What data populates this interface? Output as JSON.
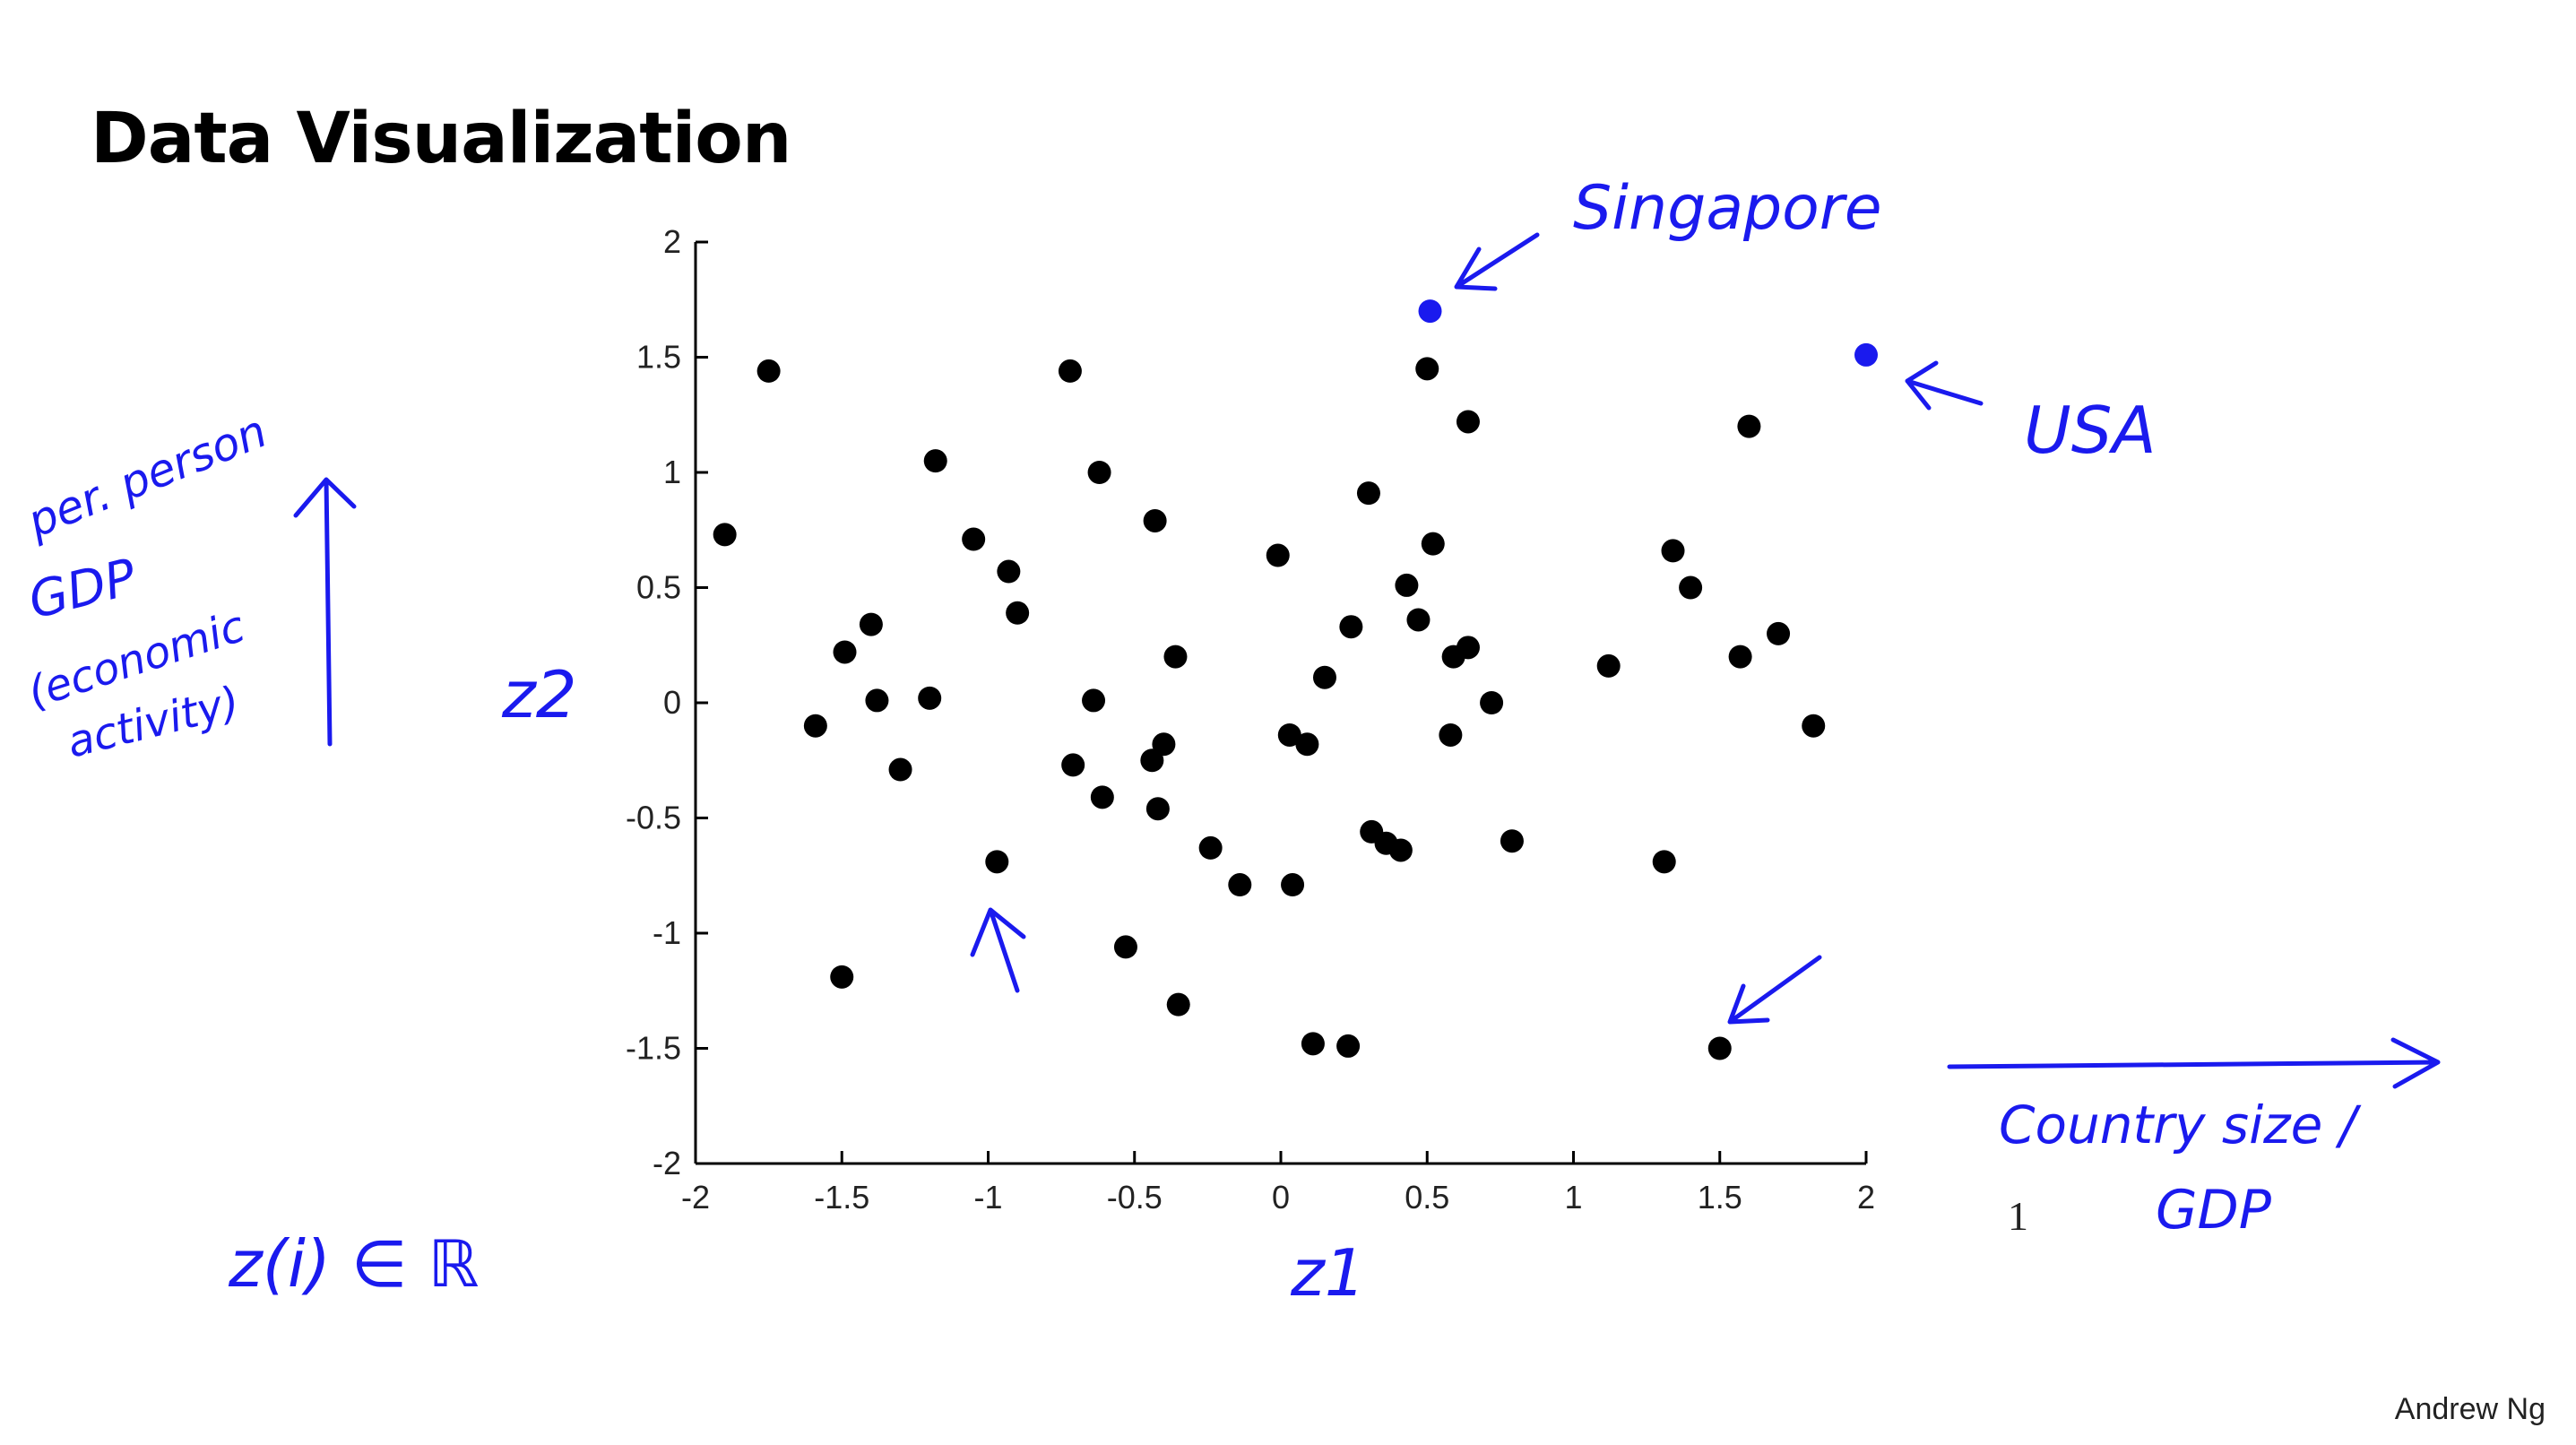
{
  "title": "Data Visualization",
  "credit": "Andrew Ng",
  "stray_mark": "1",
  "colors": {
    "points": "#000000",
    "highlight": "#1a1aee",
    "annotation": "#1a1aee",
    "axis": "#000000"
  },
  "chart_data": {
    "type": "scatter",
    "xlim": [
      -2,
      2
    ],
    "ylim": [
      -2,
      2
    ],
    "xticks": [
      -2,
      -1.5,
      -1,
      -0.5,
      0,
      0.5,
      1,
      1.5,
      2
    ],
    "yticks": [
      -2,
      -1.5,
      -1,
      -0.5,
      0,
      0.5,
      1,
      1.5,
      2
    ],
    "xtick_labels": [
      "-2",
      "-1.5",
      "-1",
      "-0.5",
      "0",
      "0.5",
      "1",
      "1.5",
      "2"
    ],
    "ytick_labels": [
      "-2",
      "-1.5",
      "-1",
      "-0.5",
      "0",
      "0.5",
      "1",
      "1.5",
      "2"
    ],
    "grid": false,
    "points": [
      [
        -1.9,
        0.73
      ],
      [
        -1.75,
        1.44
      ],
      [
        -1.18,
        1.05
      ],
      [
        -1.05,
        0.71
      ],
      [
        -0.93,
        0.57
      ],
      [
        -0.9,
        0.39
      ],
      [
        -1.4,
        0.34
      ],
      [
        -1.49,
        0.22
      ],
      [
        -1.38,
        0.01
      ],
      [
        -1.2,
        0.02
      ],
      [
        -1.59,
        -0.1
      ],
      [
        -1.3,
        -0.29
      ],
      [
        -0.62,
        1.0
      ],
      [
        -0.43,
        0.79
      ],
      [
        -0.36,
        0.2
      ],
      [
        -0.64,
        0.01
      ],
      [
        -0.71,
        -0.27
      ],
      [
        -0.61,
        -0.41
      ],
      [
        -0.44,
        -0.25
      ],
      [
        -0.4,
        -0.18
      ],
      [
        -0.42,
        -0.46
      ],
      [
        -0.24,
        -0.63
      ],
      [
        -0.14,
        -0.79
      ],
      [
        -0.97,
        -0.69
      ],
      [
        -0.53,
        -1.06
      ],
      [
        -0.35,
        -1.31
      ],
      [
        -1.5,
        -1.19
      ],
      [
        -0.72,
        1.44
      ],
      [
        -0.01,
        0.64
      ],
      [
        0.03,
        -0.14
      ],
      [
        0.09,
        -0.18
      ],
      [
        0.15,
        0.11
      ],
      [
        0.24,
        0.33
      ],
      [
        0.3,
        0.91
      ],
      [
        0.31,
        -0.56
      ],
      [
        0.36,
        -0.61
      ],
      [
        0.41,
        -0.64
      ],
      [
        0.04,
        -0.79
      ],
      [
        0.11,
        -1.48
      ],
      [
        0.23,
        -1.49
      ],
      [
        0.43,
        0.51
      ],
      [
        0.47,
        0.36
      ],
      [
        0.5,
        1.45
      ],
      [
        0.52,
        0.69
      ],
      [
        0.59,
        0.2
      ],
      [
        0.64,
        0.24
      ],
      [
        0.64,
        1.22
      ],
      [
        0.58,
        -0.14
      ],
      [
        0.72,
        0.0
      ],
      [
        0.79,
        -0.6
      ],
      [
        1.12,
        0.16
      ],
      [
        1.34,
        0.66
      ],
      [
        1.4,
        0.5
      ],
      [
        1.31,
        -0.69
      ],
      [
        1.57,
        0.2
      ],
      [
        1.6,
        1.2
      ],
      [
        1.7,
        0.3
      ],
      [
        1.82,
        -0.1
      ],
      [
        1.5,
        -1.5
      ]
    ],
    "highlighted_points": [
      {
        "label": "Singapore",
        "x": 0.51,
        "y": 1.7
      },
      {
        "label": "USA",
        "x": 2.0,
        "y": 1.51
      }
    ]
  },
  "annotations": {
    "singapore": "Singapore",
    "usa": "USA",
    "y_axis_symbol": "z2",
    "x_axis_symbol": "z1",
    "y_meaning_line1": "per. person",
    "y_meaning_line2": "GDP",
    "y_meaning_line3": "(economic",
    "y_meaning_line4": "activity)",
    "x_meaning_line1": "Country size /",
    "x_meaning_line2": "GDP",
    "z_membership": "z(i) ∈ ℝ"
  }
}
